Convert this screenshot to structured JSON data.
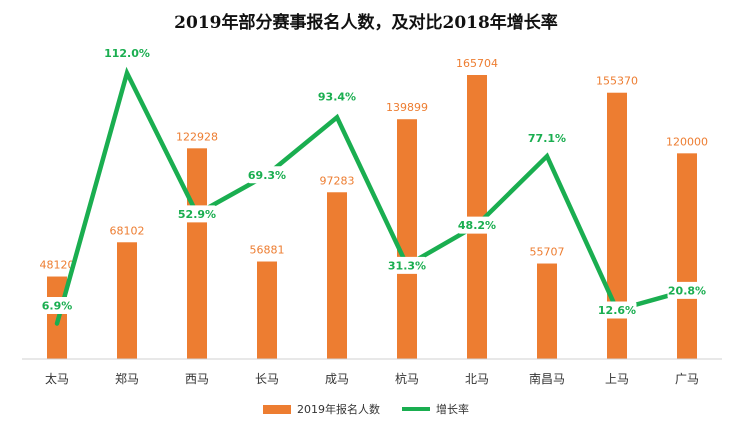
{
  "chart_data": {
    "type": "bar",
    "title": "2019年部分赛事报名人数，及对比2018年增长率",
    "categories": [
      "太马",
      "郑马",
      "西马",
      "长马",
      "成马",
      "杭马",
      "北马",
      "南昌马",
      "上马",
      "广马"
    ],
    "series": [
      {
        "name": "2019年报名人数",
        "type": "bar",
        "color": "#ED7D31",
        "values": [
          48120,
          68102,
          122928,
          56881,
          97283,
          139899,
          165704,
          55707,
          155370,
          120000
        ],
        "labels": [
          "48120",
          "68102",
          "122928",
          "56881",
          "97283",
          "139899",
          "165704",
          "55707",
          "155370",
          "120000"
        ]
      },
      {
        "name": "增长率",
        "type": "line",
        "axis": "secondary",
        "color": "#1AAE50",
        "values": [
          6.9,
          112.0,
          52.9,
          69.3,
          93.4,
          31.3,
          48.2,
          77.1,
          12.6,
          20.8
        ],
        "labels": [
          "6.9%",
          "112.0%",
          "52.9%",
          "69.3%",
          "93.4%",
          "31.3%",
          "48.2%",
          "77.1%",
          "12.6%",
          "20.8%"
        ],
        "unit": "%"
      }
    ],
    "ylim": [
      0,
      165704
    ],
    "y2lim": [
      0,
      112
    ],
    "grid": false,
    "legend": "bottom"
  }
}
